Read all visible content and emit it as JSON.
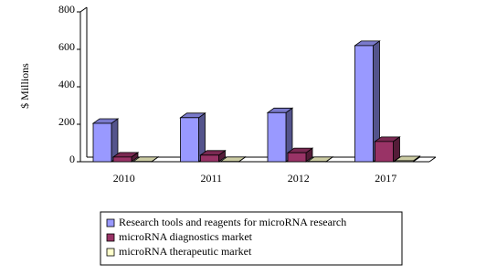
{
  "chart_data": {
    "type": "bar3d",
    "y_label": "$ Millions",
    "categories": [
      "2010",
      "2011",
      "2012",
      "2017"
    ],
    "series": [
      {
        "name": "Research tools and reagents for microRNA research",
        "color": "#9999ff",
        "values": [
          205,
          235,
          262,
          620
        ]
      },
      {
        "name": "microRNA diagnostics market",
        "color": "#993366",
        "values": [
          25,
          35,
          48,
          108
        ]
      },
      {
        "name": "microRNA therapeutic market",
        "color": "#ffffcc",
        "values": [
          1,
          1,
          1,
          5
        ]
      }
    ],
    "ylim": [
      0,
      800
    ],
    "yticks": [
      0,
      200,
      400,
      600,
      800
    ],
    "grid": false
  }
}
